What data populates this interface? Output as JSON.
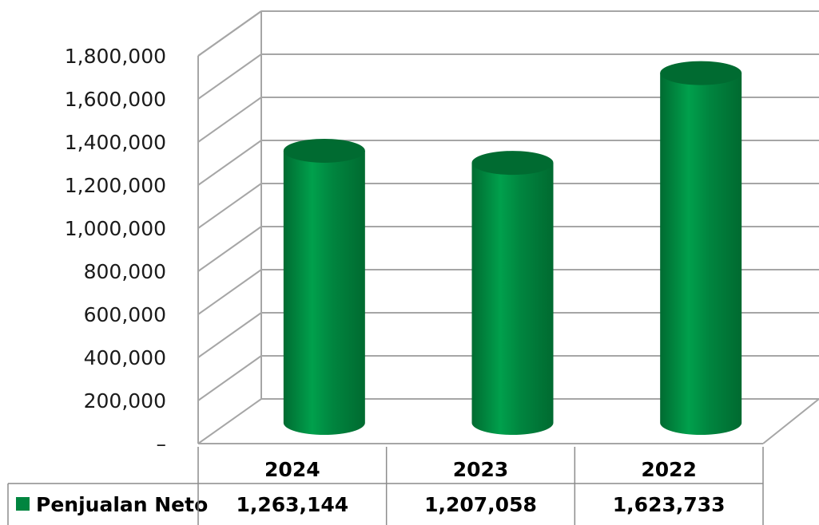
{
  "chart_data": {
    "type": "bar",
    "style": "3d-cylinder",
    "categories": [
      "2024",
      "2023",
      "2022"
    ],
    "series": [
      {
        "name": "Penjualan Neto",
        "values": [
          1263144,
          1207058,
          1623733
        ],
        "value_labels": [
          "1,263,144",
          "1,207,058",
          "1,623,733"
        ]
      }
    ],
    "ylim": [
      0,
      1800000
    ],
    "yticks": [
      0,
      200000,
      400000,
      600000,
      800000,
      1000000,
      1200000,
      1400000,
      1600000,
      1800000
    ],
    "ytick_labels": [
      "–",
      "200,000",
      "400,000",
      "600,000",
      "800,000",
      "1,000,000",
      "1,200,000",
      "1,400,000",
      "1,600,000",
      "1,800,000"
    ],
    "grid": true,
    "data_table": true,
    "legend": "in-data-table",
    "colors": {
      "bar": "#00853f",
      "bar_dark": "#006b31",
      "bar_top": "#007a39",
      "grid": "#a6a6a6",
      "legend_key": "#00853f"
    }
  }
}
